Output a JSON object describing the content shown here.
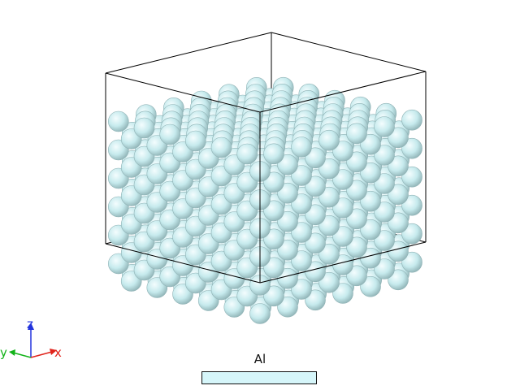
{
  "structure": {
    "element": "Al",
    "atom_color": "#c6eaed",
    "atom_edge_color": "#8fb2b5",
    "cell_line_color": "#000000"
  },
  "axes": {
    "x_label": "x",
    "y_label": "y",
    "z_label": "z",
    "x_color": "#e0231b",
    "y_color": "#12b318",
    "z_color": "#2233dd"
  },
  "legend": {
    "label": "Al",
    "swatch_color": "#d6f6fa"
  }
}
